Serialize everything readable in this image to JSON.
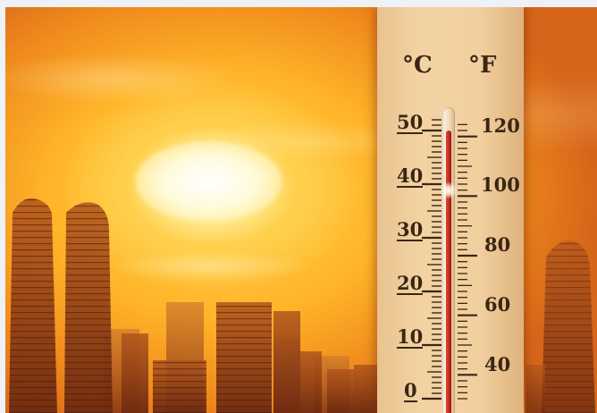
{
  "scene": {
    "description_icon": "heatwave-photo",
    "colors": {
      "sky_hot": "#f39a28",
      "sun_core": "#ffffff",
      "board": "#f1cf9e",
      "ink": "#3a2613",
      "mercury": "#c6281a"
    }
  },
  "thermometer": {
    "celsius_unit": "°C",
    "fahrenheit_unit": "°F",
    "celsius_labels": [
      "50",
      "40",
      "30",
      "20",
      "10",
      "0"
    ],
    "fahrenheit_labels": [
      "120",
      "100",
      "80",
      "60",
      "40"
    ],
    "reading_celsius": 50
  }
}
